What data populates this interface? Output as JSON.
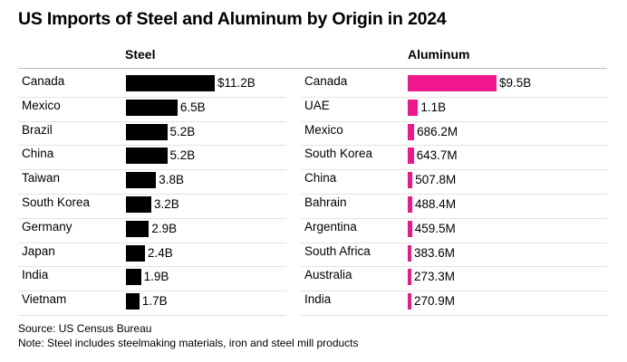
{
  "chart_data": {
    "type": "bar",
    "orientation": "horizontal",
    "title": "US Imports of Steel and Aluminum by Origin in 2024",
    "panels": [
      {
        "name": "Steel",
        "color": "#000000",
        "categories": [
          "Canada",
          "Mexico",
          "Brazil",
          "China",
          "Taiwan",
          "South Korea",
          "Germany",
          "Japan",
          "India",
          "Vietnam"
        ],
        "values": [
          11.2,
          6.5,
          5.2,
          5.2,
          3.8,
          3.2,
          2.9,
          2.4,
          1.9,
          1.7
        ],
        "unit": "billion USD",
        "labels": [
          "$11.2B",
          "6.5B",
          "5.2B",
          "5.2B",
          "3.8B",
          "3.2B",
          "2.9B",
          "2.4B",
          "1.9B",
          "1.7B"
        ]
      },
      {
        "name": "Aluminum",
        "color": "#f0168c",
        "categories": [
          "Canada",
          "UAE",
          "Mexico",
          "South Korea",
          "China",
          "Bahrain",
          "Argentina",
          "South Africa",
          "Australia",
          "India"
        ],
        "values": [
          9.5,
          1.1,
          0.6862,
          0.6437,
          0.5078,
          0.4884,
          0.4595,
          0.3836,
          0.2733,
          0.2709
        ],
        "unit": "billion USD",
        "labels": [
          "$9.5B",
          "1.1B",
          "686.2M",
          "643.7M",
          "507.8M",
          "488.4M",
          "459.5M",
          "383.6M",
          "273.3M",
          "270.9M"
        ]
      }
    ],
    "source": "Source: US Census Bureau",
    "note": "Note: Steel includes steelmaking materials, iron and steel mill products"
  }
}
